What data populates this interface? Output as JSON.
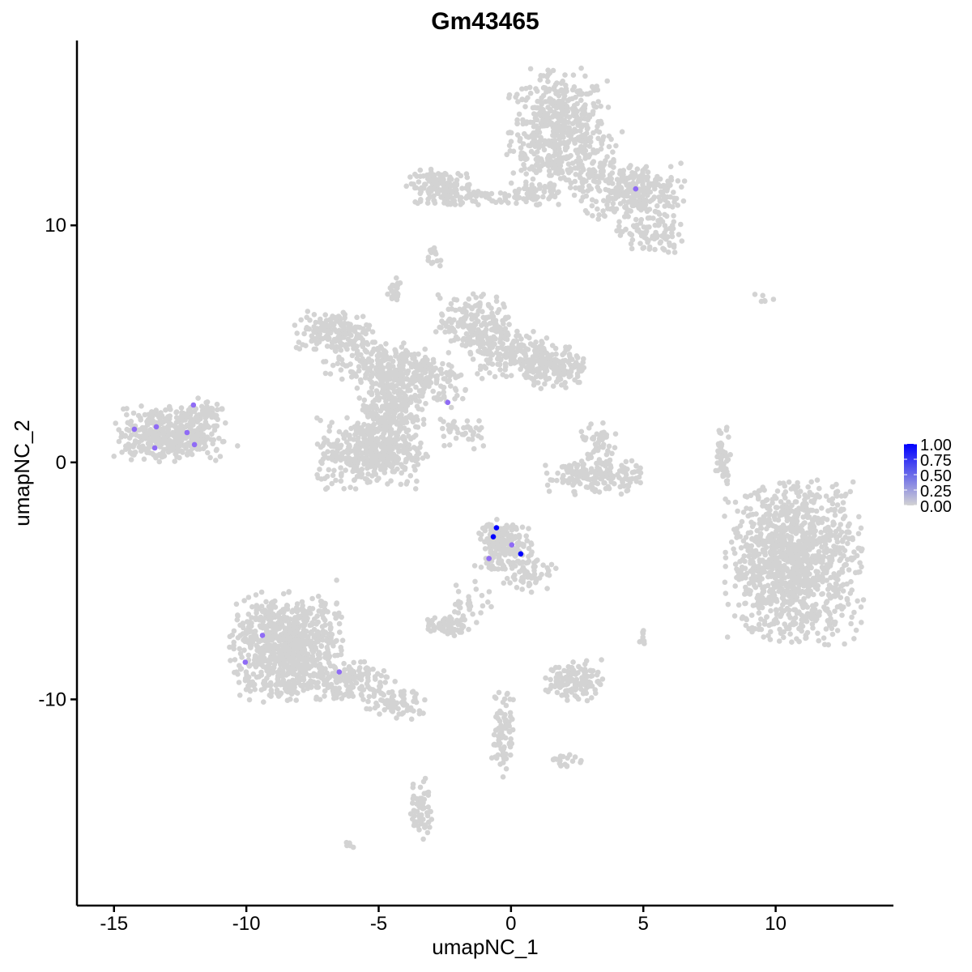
{
  "chart_data": {
    "type": "scatter",
    "title": "Gm43465",
    "xlabel": "umapNC_1",
    "ylabel": "umapNC_2",
    "xlim": [
      -16.4,
      14.45
    ],
    "ylim": [
      -18.7,
      17.8
    ],
    "x_ticks": [
      -15,
      -10,
      -5,
      0,
      5,
      10
    ],
    "y_ticks": [
      -10,
      0,
      10
    ],
    "x_tick_labels": [
      "-15",
      "-10",
      "-5",
      "0",
      "5",
      "10"
    ],
    "y_tick_labels": [
      "-10",
      "0",
      "10"
    ],
    "grid": false,
    "colors": {
      "low": "#D3D3D3",
      "high": "#0000FF"
    },
    "legend": {
      "placement": "right",
      "type": "colorbar",
      "range": [
        0,
        1
      ],
      "labels": [
        "1.00",
        "0.75",
        "0.50",
        "0.25",
        "0.00"
      ]
    },
    "background_clusters": [
      {
        "x": 1.8,
        "y": 14.0,
        "sx": 0.9,
        "sy": 1.2,
        "n": 520
      },
      {
        "x": 4.6,
        "y": 11.4,
        "sx": 0.9,
        "sy": 0.6,
        "n": 260
      },
      {
        "x": 5.3,
        "y": 9.6,
        "sx": 0.6,
        "sy": 0.4,
        "n": 90
      },
      {
        "x": 3.2,
        "y": 12.3,
        "sx": 0.6,
        "sy": 0.8,
        "n": 80
      },
      {
        "x": -2.6,
        "y": 11.6,
        "sx": 0.6,
        "sy": 0.35,
        "n": 140
      },
      {
        "x": -1.0,
        "y": 11.2,
        "sx": 1.0,
        "sy": 0.15,
        "n": 60
      },
      {
        "x": 1.0,
        "y": 11.3,
        "sx": 0.4,
        "sy": 0.3,
        "n": 50
      },
      {
        "x": -2.9,
        "y": 8.7,
        "sx": 0.15,
        "sy": 0.25,
        "n": 15
      },
      {
        "x": -4.6,
        "y": 2.2,
        "sx": 0.6,
        "sy": 1.0,
        "n": 300
      },
      {
        "x": -5.3,
        "y": 0.4,
        "sx": 1.0,
        "sy": 0.7,
        "n": 380
      },
      {
        "x": -6.7,
        "y": 5.5,
        "sx": 0.7,
        "sy": 0.4,
        "n": 160
      },
      {
        "x": -5.0,
        "y": 4.2,
        "sx": 1.0,
        "sy": 0.5,
        "n": 200
      },
      {
        "x": -4.4,
        "y": 7.2,
        "sx": 0.15,
        "sy": 0.3,
        "n": 25
      },
      {
        "x": -1.3,
        "y": 5.8,
        "sx": 0.7,
        "sy": 0.6,
        "n": 200
      },
      {
        "x": 0.0,
        "y": 4.6,
        "sx": 0.8,
        "sy": 0.5,
        "n": 160
      },
      {
        "x": 1.7,
        "y": 4.0,
        "sx": 0.6,
        "sy": 0.45,
        "n": 150
      },
      {
        "x": -3.0,
        "y": 3.3,
        "sx": 0.8,
        "sy": 0.5,
        "n": 120
      },
      {
        "x": -1.8,
        "y": 1.3,
        "sx": 0.5,
        "sy": 0.4,
        "n": 40
      },
      {
        "x": -12.9,
        "y": 1.2,
        "sx": 1.0,
        "sy": 0.55,
        "n": 420
      },
      {
        "x": -11.5,
        "y": 2.0,
        "sx": 0.3,
        "sy": 0.35,
        "n": 40
      },
      {
        "x": 3.2,
        "y": -0.6,
        "sx": 0.9,
        "sy": 0.35,
        "n": 160
      },
      {
        "x": 3.3,
        "y": 0.6,
        "sx": 0.3,
        "sy": 0.5,
        "n": 50
      },
      {
        "x": 8.0,
        "y": 0.3,
        "sx": 0.15,
        "sy": 0.6,
        "n": 50
      },
      {
        "x": 10.7,
        "y": -4.2,
        "sx": 1.2,
        "sy": 1.6,
        "n": 1150
      },
      {
        "x": -0.3,
        "y": -3.5,
        "sx": 0.5,
        "sy": 0.5,
        "n": 200
      },
      {
        "x": 0.7,
        "y": -4.6,
        "sx": 0.5,
        "sy": 0.4,
        "n": 60
      },
      {
        "x": -1.5,
        "y": -5.8,
        "sx": 0.35,
        "sy": 0.5,
        "n": 30
      },
      {
        "x": -8.5,
        "y": -7.8,
        "sx": 1.0,
        "sy": 1.1,
        "n": 800
      },
      {
        "x": -6.0,
        "y": -9.2,
        "sx": 0.8,
        "sy": 0.4,
        "n": 140
      },
      {
        "x": -4.4,
        "y": -10.2,
        "sx": 0.6,
        "sy": 0.3,
        "n": 70
      },
      {
        "x": -2.4,
        "y": -6.9,
        "sx": 0.4,
        "sy": 0.2,
        "n": 60
      },
      {
        "x": 2.4,
        "y": -9.2,
        "sx": 0.5,
        "sy": 0.4,
        "n": 120
      },
      {
        "x": -0.3,
        "y": -11.3,
        "sx": 0.2,
        "sy": 0.9,
        "n": 80
      },
      {
        "x": -3.4,
        "y": -14.6,
        "sx": 0.2,
        "sy": 0.6,
        "n": 60
      },
      {
        "x": 2.1,
        "y": -12.6,
        "sx": 0.3,
        "sy": 0.15,
        "n": 20
      },
      {
        "x": -6.1,
        "y": -16.1,
        "sx": 0.1,
        "sy": 0.08,
        "n": 6
      },
      {
        "x": 5.0,
        "y": -7.4,
        "sx": 0.1,
        "sy": 0.15,
        "n": 8
      },
      {
        "x": 9.5,
        "y": 6.9,
        "sx": 0.3,
        "sy": 0.1,
        "n": 6
      }
    ],
    "expressing_cells": [
      {
        "x": 4.71,
        "y": 11.54,
        "value": 0.6
      },
      {
        "x": -2.39,
        "y": 2.53,
        "value": 0.6
      },
      {
        "x": -12.0,
        "y": 2.42,
        "value": 0.6
      },
      {
        "x": -14.23,
        "y": 1.4,
        "value": 0.6
      },
      {
        "x": -13.4,
        "y": 1.5,
        "value": 0.6
      },
      {
        "x": -12.24,
        "y": 1.26,
        "value": 0.6
      },
      {
        "x": -13.46,
        "y": 0.61,
        "value": 0.6
      },
      {
        "x": -11.96,
        "y": 0.75,
        "value": 0.6
      },
      {
        "x": -0.55,
        "y": -2.76,
        "value": 1.0
      },
      {
        "x": -0.67,
        "y": -3.14,
        "value": 1.0
      },
      {
        "x": 0.03,
        "y": -3.48,
        "value": 0.6
      },
      {
        "x": 0.37,
        "y": -3.86,
        "value": 1.0
      },
      {
        "x": -0.83,
        "y": -4.06,
        "value": 0.6
      },
      {
        "x": -9.39,
        "y": -7.3,
        "value": 0.6
      },
      {
        "x": -10.04,
        "y": -8.43,
        "value": 0.6
      },
      {
        "x": -6.49,
        "y": -8.84,
        "value": 0.6
      }
    ]
  }
}
